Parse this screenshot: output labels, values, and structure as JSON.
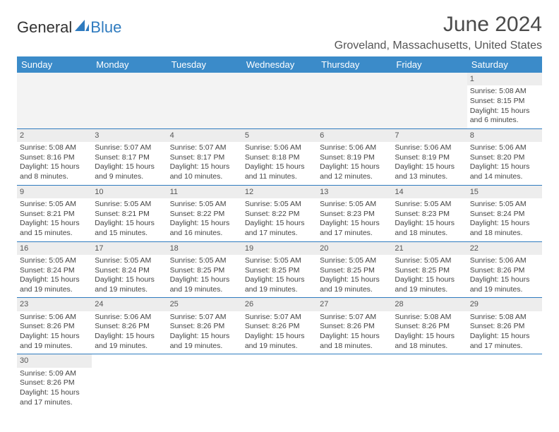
{
  "logo": {
    "text_a": "General",
    "text_b": "Blue"
  },
  "title": "June 2024",
  "location": "Groveland, Massachusetts, United States",
  "colors": {
    "header_bg": "#3b8bc9",
    "header_text": "#ffffff",
    "border": "#2f7bbf",
    "daynum_bg": "#ededed",
    "body_text": "#444"
  },
  "day_headers": [
    "Sunday",
    "Monday",
    "Tuesday",
    "Wednesday",
    "Thursday",
    "Friday",
    "Saturday"
  ],
  "weeks": [
    [
      null,
      null,
      null,
      null,
      null,
      null,
      {
        "n": "1",
        "sr": "Sunrise: 5:08 AM",
        "ss": "Sunset: 8:15 PM",
        "d1": "Daylight: 15 hours",
        "d2": "and 6 minutes."
      }
    ],
    [
      {
        "n": "2",
        "sr": "Sunrise: 5:08 AM",
        "ss": "Sunset: 8:16 PM",
        "d1": "Daylight: 15 hours",
        "d2": "and 8 minutes."
      },
      {
        "n": "3",
        "sr": "Sunrise: 5:07 AM",
        "ss": "Sunset: 8:17 PM",
        "d1": "Daylight: 15 hours",
        "d2": "and 9 minutes."
      },
      {
        "n": "4",
        "sr": "Sunrise: 5:07 AM",
        "ss": "Sunset: 8:17 PM",
        "d1": "Daylight: 15 hours",
        "d2": "and 10 minutes."
      },
      {
        "n": "5",
        "sr": "Sunrise: 5:06 AM",
        "ss": "Sunset: 8:18 PM",
        "d1": "Daylight: 15 hours",
        "d2": "and 11 minutes."
      },
      {
        "n": "6",
        "sr": "Sunrise: 5:06 AM",
        "ss": "Sunset: 8:19 PM",
        "d1": "Daylight: 15 hours",
        "d2": "and 12 minutes."
      },
      {
        "n": "7",
        "sr": "Sunrise: 5:06 AM",
        "ss": "Sunset: 8:19 PM",
        "d1": "Daylight: 15 hours",
        "d2": "and 13 minutes."
      },
      {
        "n": "8",
        "sr": "Sunrise: 5:06 AM",
        "ss": "Sunset: 8:20 PM",
        "d1": "Daylight: 15 hours",
        "d2": "and 14 minutes."
      }
    ],
    [
      {
        "n": "9",
        "sr": "Sunrise: 5:05 AM",
        "ss": "Sunset: 8:21 PM",
        "d1": "Daylight: 15 hours",
        "d2": "and 15 minutes."
      },
      {
        "n": "10",
        "sr": "Sunrise: 5:05 AM",
        "ss": "Sunset: 8:21 PM",
        "d1": "Daylight: 15 hours",
        "d2": "and 15 minutes."
      },
      {
        "n": "11",
        "sr": "Sunrise: 5:05 AM",
        "ss": "Sunset: 8:22 PM",
        "d1": "Daylight: 15 hours",
        "d2": "and 16 minutes."
      },
      {
        "n": "12",
        "sr": "Sunrise: 5:05 AM",
        "ss": "Sunset: 8:22 PM",
        "d1": "Daylight: 15 hours",
        "d2": "and 17 minutes."
      },
      {
        "n": "13",
        "sr": "Sunrise: 5:05 AM",
        "ss": "Sunset: 8:23 PM",
        "d1": "Daylight: 15 hours",
        "d2": "and 17 minutes."
      },
      {
        "n": "14",
        "sr": "Sunrise: 5:05 AM",
        "ss": "Sunset: 8:23 PM",
        "d1": "Daylight: 15 hours",
        "d2": "and 18 minutes."
      },
      {
        "n": "15",
        "sr": "Sunrise: 5:05 AM",
        "ss": "Sunset: 8:24 PM",
        "d1": "Daylight: 15 hours",
        "d2": "and 18 minutes."
      }
    ],
    [
      {
        "n": "16",
        "sr": "Sunrise: 5:05 AM",
        "ss": "Sunset: 8:24 PM",
        "d1": "Daylight: 15 hours",
        "d2": "and 19 minutes."
      },
      {
        "n": "17",
        "sr": "Sunrise: 5:05 AM",
        "ss": "Sunset: 8:24 PM",
        "d1": "Daylight: 15 hours",
        "d2": "and 19 minutes."
      },
      {
        "n": "18",
        "sr": "Sunrise: 5:05 AM",
        "ss": "Sunset: 8:25 PM",
        "d1": "Daylight: 15 hours",
        "d2": "and 19 minutes."
      },
      {
        "n": "19",
        "sr": "Sunrise: 5:05 AM",
        "ss": "Sunset: 8:25 PM",
        "d1": "Daylight: 15 hours",
        "d2": "and 19 minutes."
      },
      {
        "n": "20",
        "sr": "Sunrise: 5:05 AM",
        "ss": "Sunset: 8:25 PM",
        "d1": "Daylight: 15 hours",
        "d2": "and 19 minutes."
      },
      {
        "n": "21",
        "sr": "Sunrise: 5:05 AM",
        "ss": "Sunset: 8:25 PM",
        "d1": "Daylight: 15 hours",
        "d2": "and 19 minutes."
      },
      {
        "n": "22",
        "sr": "Sunrise: 5:06 AM",
        "ss": "Sunset: 8:26 PM",
        "d1": "Daylight: 15 hours",
        "d2": "and 19 minutes."
      }
    ],
    [
      {
        "n": "23",
        "sr": "Sunrise: 5:06 AM",
        "ss": "Sunset: 8:26 PM",
        "d1": "Daylight: 15 hours",
        "d2": "and 19 minutes."
      },
      {
        "n": "24",
        "sr": "Sunrise: 5:06 AM",
        "ss": "Sunset: 8:26 PM",
        "d1": "Daylight: 15 hours",
        "d2": "and 19 minutes."
      },
      {
        "n": "25",
        "sr": "Sunrise: 5:07 AM",
        "ss": "Sunset: 8:26 PM",
        "d1": "Daylight: 15 hours",
        "d2": "and 19 minutes."
      },
      {
        "n": "26",
        "sr": "Sunrise: 5:07 AM",
        "ss": "Sunset: 8:26 PM",
        "d1": "Daylight: 15 hours",
        "d2": "and 19 minutes."
      },
      {
        "n": "27",
        "sr": "Sunrise: 5:07 AM",
        "ss": "Sunset: 8:26 PM",
        "d1": "Daylight: 15 hours",
        "d2": "and 18 minutes."
      },
      {
        "n": "28",
        "sr": "Sunrise: 5:08 AM",
        "ss": "Sunset: 8:26 PM",
        "d1": "Daylight: 15 hours",
        "d2": "and 18 minutes."
      },
      {
        "n": "29",
        "sr": "Sunrise: 5:08 AM",
        "ss": "Sunset: 8:26 PM",
        "d1": "Daylight: 15 hours",
        "d2": "and 17 minutes."
      }
    ],
    [
      {
        "n": "30",
        "sr": "Sunrise: 5:09 AM",
        "ss": "Sunset: 8:26 PM",
        "d1": "Daylight: 15 hours",
        "d2": "and 17 minutes."
      },
      null,
      null,
      null,
      null,
      null,
      null
    ]
  ]
}
